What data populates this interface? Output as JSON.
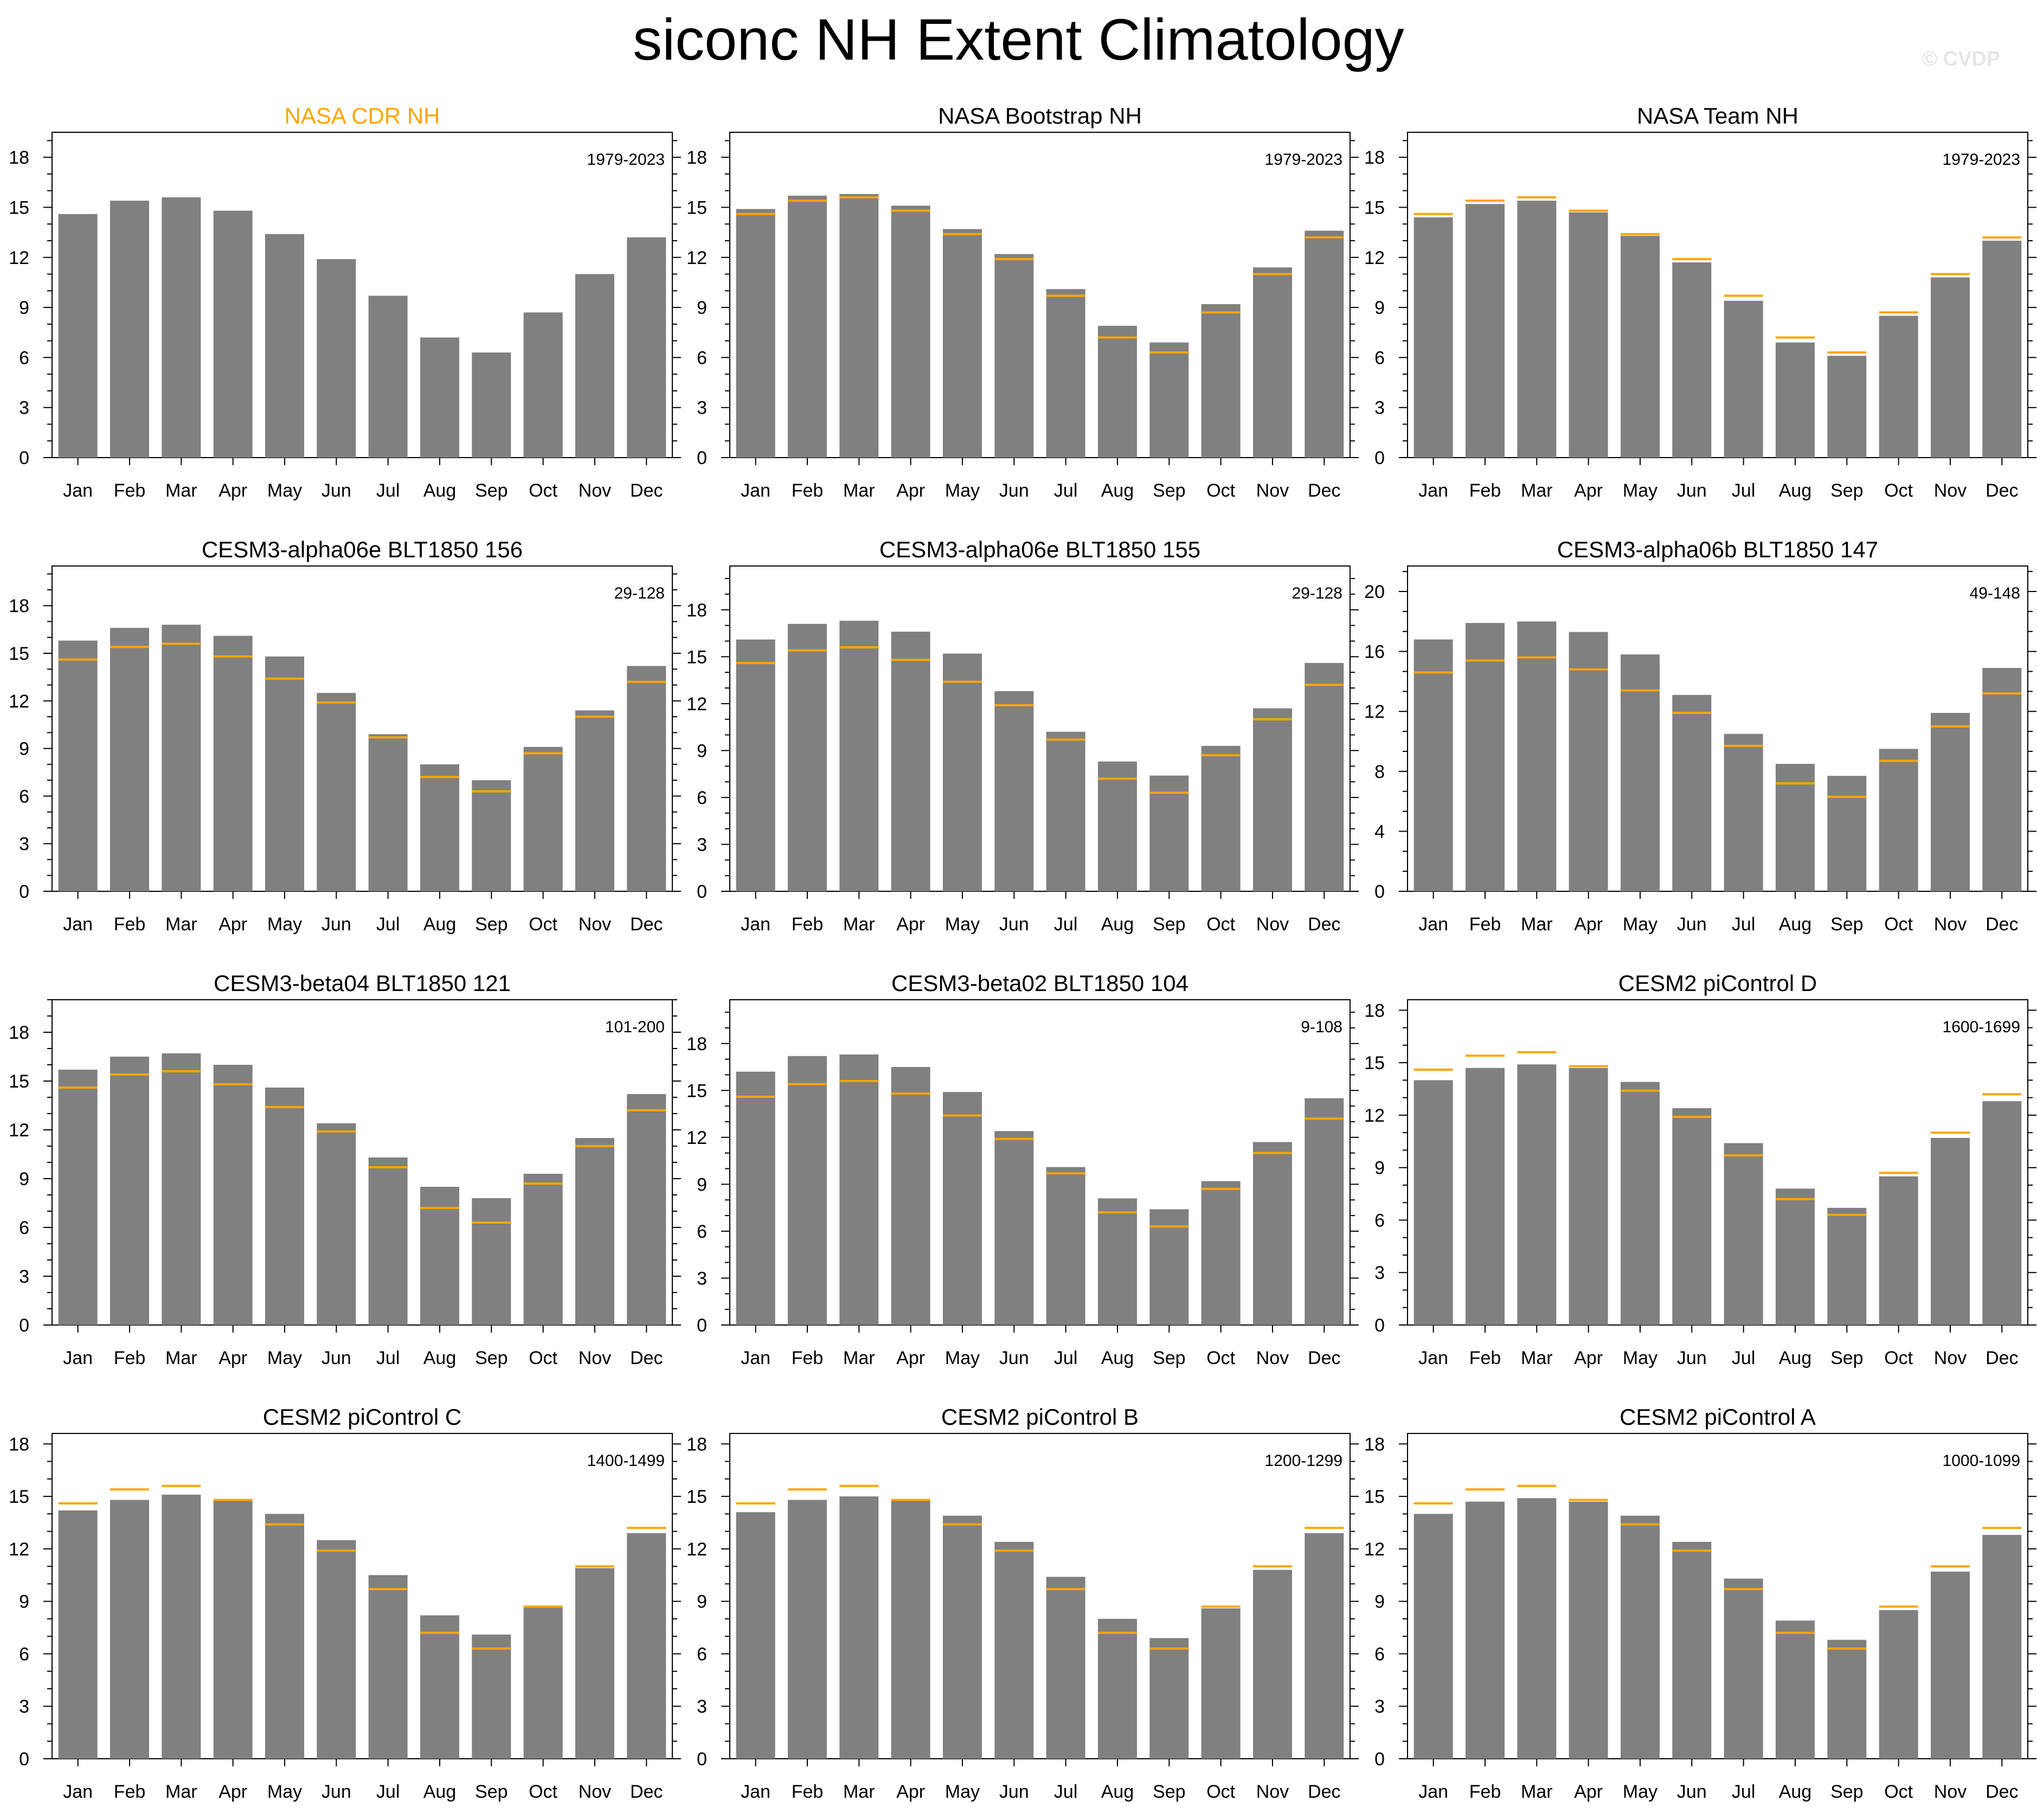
{
  "title": "siconc NH Extent Climatology",
  "watermark": "© CVDP",
  "colors": {
    "bar": "#808080",
    "reference": "#ffa500",
    "highlight_title": "#ffa500",
    "frame": "#000000"
  },
  "months": [
    "Jan",
    "Feb",
    "Mar",
    "Apr",
    "May",
    "Jun",
    "Jul",
    "Aug",
    "Sep",
    "Oct",
    "Nov",
    "Dec"
  ],
  "reference_values": [
    14.6,
    15.4,
    15.6,
    14.8,
    13.4,
    11.9,
    9.7,
    7.2,
    6.3,
    8.7,
    11.0,
    13.2
  ],
  "chart_data": [
    {
      "type": "bar",
      "title": "NASA CDR NH",
      "title_highlight": true,
      "period": "1979-2023",
      "ylim": [
        0,
        19.5
      ],
      "yticks": [
        0,
        3,
        6,
        9,
        12,
        15,
        18
      ],
      "show_reference": false,
      "values": [
        14.6,
        15.4,
        15.6,
        14.8,
        13.4,
        11.9,
        9.7,
        7.2,
        6.3,
        8.7,
        11.0,
        13.2
      ]
    },
    {
      "type": "bar",
      "title": "NASA Bootstrap NH",
      "title_highlight": false,
      "period": "1979-2023",
      "ylim": [
        0,
        19.5
      ],
      "yticks": [
        0,
        3,
        6,
        9,
        12,
        15,
        18
      ],
      "show_reference": true,
      "values": [
        14.9,
        15.7,
        15.8,
        15.1,
        13.7,
        12.2,
        10.1,
        7.9,
        6.9,
        9.2,
        11.4,
        13.6
      ]
    },
    {
      "type": "bar",
      "title": "NASA Team NH",
      "title_highlight": false,
      "period": "1979-2023",
      "ylim": [
        0,
        19.5
      ],
      "yticks": [
        0,
        3,
        6,
        9,
        12,
        15,
        18
      ],
      "show_reference": true,
      "values": [
        14.4,
        15.2,
        15.4,
        14.7,
        13.3,
        11.7,
        9.4,
        6.9,
        6.1,
        8.5,
        10.8,
        13.0
      ]
    },
    {
      "type": "bar",
      "title": "CESM3-alpha06e BLT1850 156",
      "title_highlight": false,
      "period": "29-128",
      "ylim": [
        0,
        20.5
      ],
      "yticks": [
        0,
        3,
        6,
        9,
        12,
        15,
        18
      ],
      "show_reference": true,
      "values": [
        15.8,
        16.6,
        16.8,
        16.1,
        14.8,
        12.5,
        9.9,
        8.0,
        7.0,
        9.1,
        11.4,
        14.2
      ]
    },
    {
      "type": "bar",
      "title": "CESM3-alpha06e BLT1850 155",
      "title_highlight": false,
      "period": "29-128",
      "ylim": [
        0,
        20.8
      ],
      "yticks": [
        0,
        3,
        6,
        9,
        12,
        15,
        18
      ],
      "show_reference": true,
      "values": [
        16.1,
        17.1,
        17.3,
        16.6,
        15.2,
        12.8,
        10.2,
        8.3,
        7.4,
        9.3,
        11.7,
        14.6
      ]
    },
    {
      "type": "bar",
      "title": "CESM3-alpha06b BLT1850 147",
      "title_highlight": false,
      "period": "49-148",
      "ylim": [
        0,
        21.7
      ],
      "yticks": [
        0,
        4,
        8,
        12,
        16,
        20
      ],
      "show_reference": true,
      "values": [
        16.8,
        17.9,
        18.0,
        17.3,
        15.8,
        13.1,
        10.5,
        8.5,
        7.7,
        9.5,
        11.9,
        14.9
      ]
    },
    {
      "type": "bar",
      "title": "CESM3-beta04 BLT1850 121",
      "title_highlight": false,
      "period": "101-200",
      "ylim": [
        0,
        20.0
      ],
      "yticks": [
        0,
        3,
        6,
        9,
        12,
        15,
        18
      ],
      "show_reference": true,
      "values": [
        15.7,
        16.5,
        16.7,
        16.0,
        14.6,
        12.4,
        10.3,
        8.5,
        7.8,
        9.3,
        11.5,
        14.2
      ]
    },
    {
      "type": "bar",
      "title": "CESM3-beta02 BLT1850 104",
      "title_highlight": false,
      "period": "9-108",
      "ylim": [
        0,
        20.8
      ],
      "yticks": [
        0,
        3,
        6,
        9,
        12,
        15,
        18
      ],
      "show_reference": true,
      "values": [
        16.2,
        17.2,
        17.3,
        16.5,
        14.9,
        12.4,
        10.1,
        8.1,
        7.4,
        9.2,
        11.7,
        14.5
      ]
    },
    {
      "type": "bar",
      "title": "CESM2 piControl D",
      "title_highlight": false,
      "period": "1600-1699",
      "ylim": [
        0,
        18.6
      ],
      "yticks": [
        0,
        3,
        6,
        9,
        12,
        15,
        18
      ],
      "show_reference": true,
      "values": [
        14.0,
        14.7,
        14.9,
        14.7,
        13.9,
        12.4,
        10.4,
        7.8,
        6.7,
        8.5,
        10.7,
        12.8
      ]
    },
    {
      "type": "bar",
      "title": "CESM2 piControl C",
      "title_highlight": false,
      "period": "1400-1499",
      "ylim": [
        0,
        18.6
      ],
      "yticks": [
        0,
        3,
        6,
        9,
        12,
        15,
        18
      ],
      "show_reference": true,
      "values": [
        14.2,
        14.8,
        15.1,
        14.8,
        14.0,
        12.5,
        10.5,
        8.2,
        7.1,
        8.7,
        10.9,
        12.9
      ]
    },
    {
      "type": "bar",
      "title": "CESM2 piControl B",
      "title_highlight": false,
      "period": "1200-1299",
      "ylim": [
        0,
        18.6
      ],
      "yticks": [
        0,
        3,
        6,
        9,
        12,
        15,
        18
      ],
      "show_reference": true,
      "values": [
        14.1,
        14.8,
        15.0,
        14.8,
        13.9,
        12.4,
        10.4,
        8.0,
        6.9,
        8.6,
        10.8,
        12.9
      ]
    },
    {
      "type": "bar",
      "title": "CESM2 piControl A",
      "title_highlight": false,
      "period": "1000-1099",
      "ylim": [
        0,
        18.6
      ],
      "yticks": [
        0,
        3,
        6,
        9,
        12,
        15,
        18
      ],
      "show_reference": true,
      "values": [
        14.0,
        14.7,
        14.9,
        14.7,
        13.9,
        12.4,
        10.3,
        7.9,
        6.8,
        8.5,
        10.7,
        12.8
      ]
    }
  ]
}
